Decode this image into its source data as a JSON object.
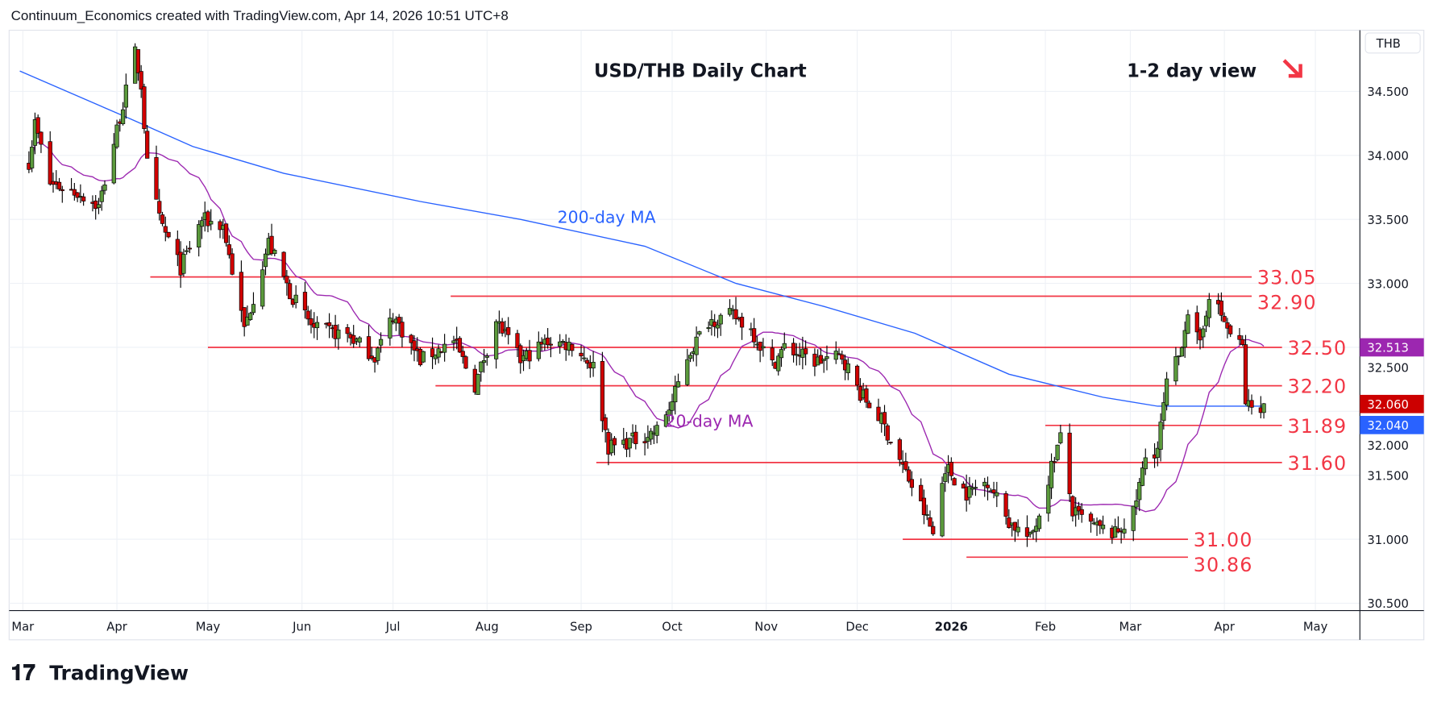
{
  "header": "Continuum_Economics created with TradingView.com, Apr 14, 2026 10:51 UTC+8",
  "brand": "TradingView",
  "chart_data": {
    "type": "candlestick",
    "title": "USD/THB Daily Chart",
    "view_label": "1-2 day view",
    "view_direction": "down",
    "currency": "THB",
    "ylim": [
      30.5,
      34.9
    ],
    "y_ticks": [
      "34.500",
      "34.000",
      "33.500",
      "33.000",
      "32.500",
      "32.000",
      "31.500",
      "31.000",
      "30.500"
    ],
    "y_tick_values": [
      34.5,
      34.0,
      33.5,
      33.0,
      32.5,
      32.0,
      31.5,
      31.0,
      30.5
    ],
    "x_ticks": [
      {
        "label": "Mar",
        "date": "2025-03-01"
      },
      {
        "label": "Apr",
        "date": "2025-04-01"
      },
      {
        "label": "May",
        "date": "2025-05-01"
      },
      {
        "label": "Jun",
        "date": "2025-06-01"
      },
      {
        "label": "Jul",
        "date": "2025-07-01"
      },
      {
        "label": "Aug",
        "date": "2025-08-01"
      },
      {
        "label": "Sep",
        "date": "2025-09-01"
      },
      {
        "label": "Oct",
        "date": "2025-10-01"
      },
      {
        "label": "Nov",
        "date": "2025-11-01"
      },
      {
        "label": "Dec",
        "date": "2025-12-01"
      },
      {
        "label": "2026",
        "date": "2026-01-01",
        "bold": true
      },
      {
        "label": "Feb",
        "date": "2026-02-01"
      },
      {
        "label": "Mar",
        "date": "2026-03-01"
      },
      {
        "label": "Apr",
        "date": "2026-04-01"
      },
      {
        "label": "May",
        "date": "2026-05-01"
      }
    ],
    "x_range": [
      "2025-03-01",
      "2026-05-01"
    ],
    "close_anchors": [
      [
        "2025-03-03",
        33.95
      ],
      [
        "2025-03-05",
        34.25
      ],
      [
        "2025-03-10",
        33.78
      ],
      [
        "2025-03-20",
        33.7
      ],
      [
        "2025-03-26",
        33.6
      ],
      [
        "2025-04-01",
        34.2
      ],
      [
        "2025-04-07",
        34.8
      ],
      [
        "2025-04-09",
        34.55
      ],
      [
        "2025-04-11",
        33.93
      ],
      [
        "2025-04-15",
        33.5
      ],
      [
        "2025-04-22",
        33.12
      ],
      [
        "2025-04-29",
        33.5
      ],
      [
        "2025-05-06",
        33.45
      ],
      [
        "2025-05-13",
        32.64
      ],
      [
        "2025-05-21",
        33.32
      ],
      [
        "2025-05-28",
        32.93
      ],
      [
        "2025-06-05",
        32.64
      ],
      [
        "2025-06-16",
        32.6
      ],
      [
        "2025-06-25",
        32.43
      ],
      [
        "2025-07-01",
        32.75
      ],
      [
        "2025-07-10",
        32.4
      ],
      [
        "2025-07-21",
        32.55
      ],
      [
        "2025-07-28",
        32.2
      ],
      [
        "2025-08-04",
        32.71
      ],
      [
        "2025-08-12",
        32.4
      ],
      [
        "2025-08-21",
        32.55
      ],
      [
        "2025-08-29",
        32.52
      ],
      [
        "2025-09-05",
        32.35
      ],
      [
        "2025-09-10",
        31.72
      ],
      [
        "2025-09-19",
        31.78
      ],
      [
        "2025-09-26",
        31.85
      ],
      [
        "2025-10-01",
        32.07
      ],
      [
        "2025-10-06",
        32.43
      ],
      [
        "2025-10-13",
        32.71
      ],
      [
        "2025-10-21",
        32.75
      ],
      [
        "2025-10-27",
        32.64
      ],
      [
        "2025-11-03",
        32.36
      ],
      [
        "2025-11-07",
        32.5
      ],
      [
        "2025-11-17",
        32.39
      ],
      [
        "2025-11-26",
        32.43
      ],
      [
        "2025-12-02",
        32.14
      ],
      [
        "2025-12-09",
        31.93
      ],
      [
        "2025-12-16",
        31.57
      ],
      [
        "2025-12-23",
        31.21
      ],
      [
        "2025-12-26",
        31.04
      ],
      [
        "2025-12-30",
        31.57
      ],
      [
        "2026-01-06",
        31.36
      ],
      [
        "2026-01-13",
        31.46
      ],
      [
        "2026-01-20",
        31.14
      ],
      [
        "2026-01-27",
        31.0
      ],
      [
        "2026-01-30",
        31.2
      ],
      [
        "2026-02-03",
        31.57
      ],
      [
        "2026-02-06",
        31.79
      ],
      [
        "2026-02-10",
        31.21
      ],
      [
        "2026-02-17",
        31.1
      ],
      [
        "2026-02-24",
        31.04
      ],
      [
        "2026-03-02",
        31.2
      ],
      [
        "2026-03-06",
        31.64
      ],
      [
        "2026-03-10",
        31.71
      ],
      [
        "2026-03-13",
        32.21
      ],
      [
        "2026-03-17",
        32.43
      ],
      [
        "2026-03-20",
        32.79
      ],
      [
        "2026-03-24",
        32.5
      ],
      [
        "2026-03-27",
        32.93
      ],
      [
        "2026-03-31",
        32.75
      ],
      [
        "2026-04-03",
        32.6
      ],
      [
        "2026-04-07",
        32.5
      ],
      [
        "2026-04-08",
        32.07
      ],
      [
        "2026-04-10",
        32.02
      ],
      [
        "2026-04-14",
        32.06
      ]
    ],
    "series": [
      {
        "name": "200-day MA",
        "color": "#2962ff",
        "label": "200-day MA",
        "last": "32.040",
        "points": [
          [
            "2025-02-28",
            34.66
          ],
          [
            "2025-04-05",
            34.29
          ],
          [
            "2025-04-26",
            34.07
          ],
          [
            "2025-05-26",
            33.86
          ],
          [
            "2025-07-10",
            33.64
          ],
          [
            "2025-08-12",
            33.5
          ],
          [
            "2025-09-22",
            33.29
          ],
          [
            "2025-10-22",
            33.0
          ],
          [
            "2025-11-20",
            32.82
          ],
          [
            "2025-12-20",
            32.61
          ],
          [
            "2026-01-20",
            32.29
          ],
          [
            "2026-02-20",
            32.11
          ],
          [
            "2026-03-10",
            32.04
          ],
          [
            "2026-04-14",
            32.04
          ]
        ]
      },
      {
        "name": "20-day MA",
        "color": "#9c27b0",
        "label": "20-day MA",
        "period": 20,
        "last": "32.513"
      }
    ],
    "last_price": "32.060",
    "levels": [
      {
        "label": "33.05",
        "value": 33.05,
        "from": "2025-04-12",
        "to": "2026-04-10"
      },
      {
        "label": "32.90",
        "value": 32.9,
        "from": "2025-07-20",
        "to": "2026-04-10"
      },
      {
        "label": "32.50",
        "value": 32.5,
        "from": "2025-05-01",
        "to": "2026-04-20"
      },
      {
        "label": "32.20",
        "value": 32.2,
        "from": "2025-07-15",
        "to": "2026-04-20"
      },
      {
        "label": "31.89",
        "value": 31.89,
        "from": "2026-02-01",
        "to": "2026-04-20"
      },
      {
        "label": "31.60",
        "value": 31.6,
        "from": "2025-09-06",
        "to": "2026-04-20"
      },
      {
        "label": "31.00",
        "value": 31.0,
        "from": "2025-12-16",
        "to": "2026-03-20"
      },
      {
        "label": "30.86",
        "value": 30.86,
        "from": "2026-01-06",
        "to": "2026-03-20"
      }
    ],
    "colors": {
      "up": "#5b9a3c",
      "down": "#d10000",
      "level": "#f23645",
      "last": "#cc0000"
    }
  }
}
